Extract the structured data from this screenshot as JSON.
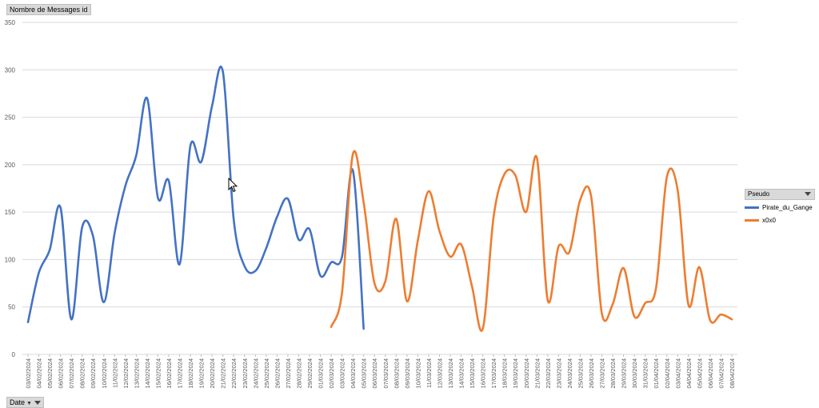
{
  "value_field": {
    "label": "Nombre de Messages id"
  },
  "axis_field": {
    "label": "Date"
  },
  "legend": {
    "title": "Pseudo"
  },
  "colors": {
    "Pirate_du_Gange": "#4472c4",
    "x0x0": "#ed7d31",
    "grid": "#d9d9d9",
    "axis_text": "#595959"
  },
  "chart_data": {
    "type": "line",
    "ylim": [
      0,
      350
    ],
    "yticks": [
      0,
      50,
      100,
      150,
      200,
      250,
      300,
      350
    ],
    "grid": true,
    "legend_position": "right",
    "smooth": true,
    "categories": [
      "03/02/2024",
      "04/02/2024",
      "05/02/2024",
      "06/02/2024",
      "07/02/2024",
      "08/02/2024",
      "09/02/2024",
      "10/02/2024",
      "11/02/2024",
      "12/02/2024",
      "13/02/2024",
      "14/02/2024",
      "15/02/2024",
      "16/02/2024",
      "17/02/2024",
      "18/02/2024",
      "19/02/2024",
      "20/02/2024",
      "21/02/2024",
      "22/02/2024",
      "23/02/2024",
      "24/02/2024",
      "25/02/2024",
      "26/02/2024",
      "27/02/2024",
      "28/02/2024",
      "29/02/2024",
      "01/03/2024",
      "02/03/2024",
      "03/03/2024",
      "04/03/2024",
      "05/03/2024",
      "06/03/2024",
      "07/03/2024",
      "08/03/2024",
      "09/03/2024",
      "10/03/2024",
      "11/03/2024",
      "12/03/2024",
      "13/03/2024",
      "14/03/2024",
      "15/03/2024",
      "16/03/2024",
      "17/03/2024",
      "18/03/2024",
      "19/03/2024",
      "20/03/2024",
      "21/03/2024",
      "22/03/2024",
      "23/03/2024",
      "24/03/2024",
      "25/03/2024",
      "26/03/2024",
      "27/03/2024",
      "28/03/2024",
      "29/03/2024",
      "30/03/2024",
      "31/03/2024",
      "01/04/2024",
      "02/04/2024",
      "03/04/2024",
      "04/04/2024",
      "05/04/2024",
      "06/04/2024",
      "07/04/2024",
      "08/04/2024"
    ],
    "series": [
      {
        "name": "Pirate_du_Gange",
        "color": "#4472c4",
        "values": [
          34,
          86,
          110,
          155,
          37,
          134,
          125,
          55,
          128,
          178,
          210,
          270,
          165,
          183,
          95,
          220,
          203,
          262,
          298,
          142,
          93,
          88,
          112,
          145,
          164,
          121,
          132,
          83,
          97,
          103,
          194,
          27,
          null,
          null,
          null,
          null,
          null,
          null,
          null,
          null,
          null,
          null,
          null,
          null,
          null,
          null,
          null,
          null,
          null,
          null,
          null,
          null,
          null,
          null,
          null,
          null,
          null,
          null,
          null,
          null,
          null,
          null,
          null,
          null,
          null,
          null
        ]
      },
      {
        "name": "x0x0",
        "color": "#ed7d31",
        "values": [
          null,
          null,
          null,
          null,
          null,
          null,
          null,
          null,
          null,
          null,
          null,
          null,
          null,
          null,
          null,
          null,
          null,
          null,
          null,
          null,
          null,
          null,
          null,
          null,
          null,
          null,
          null,
          null,
          29,
          65,
          211,
          160,
          75,
          77,
          143,
          56,
          120,
          172,
          130,
          103,
          116,
          72,
          27,
          145,
          190,
          189,
          150,
          207,
          57,
          114,
          108,
          163,
          167,
          43,
          53,
          91,
          40,
          54,
          70,
          187,
          173,
          52,
          92,
          36,
          42,
          37
        ]
      }
    ]
  }
}
